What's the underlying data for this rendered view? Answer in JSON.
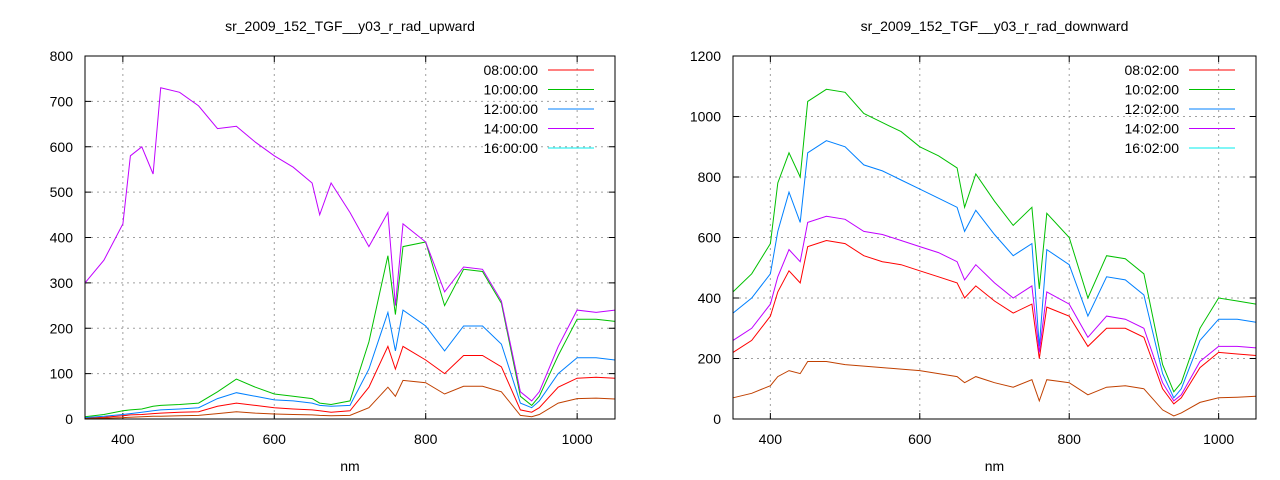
{
  "chart_data": [
    {
      "type": "line",
      "title": "sr_2009_152_TGF__y03_r_rad_upward",
      "xlabel": "nm",
      "ylabel": "",
      "xlim": [
        350,
        1050
      ],
      "ylim": [
        0,
        800
      ],
      "xticks": [
        400,
        600,
        800,
        1000
      ],
      "yticks": [
        0,
        100,
        200,
        300,
        400,
        500,
        600,
        700,
        800
      ],
      "grid": true,
      "legend_position": "top-right",
      "x": [
        350,
        375,
        400,
        410,
        425,
        440,
        450,
        475,
        500,
        525,
        550,
        575,
        600,
        625,
        650,
        660,
        675,
        700,
        725,
        750,
        760,
        770,
        800,
        825,
        850,
        875,
        900,
        925,
        940,
        950,
        975,
        1000,
        1025,
        1050
      ],
      "series": [
        {
          "name": "08:00:00",
          "color": "#ff0000",
          "legend_color": "#ff0000",
          "values": [
            2,
            4,
            7,
            9,
            10,
            12,
            13,
            15,
            16,
            28,
            35,
            30,
            25,
            22,
            20,
            18,
            15,
            18,
            70,
            160,
            110,
            160,
            130,
            100,
            140,
            140,
            115,
            20,
            15,
            25,
            70,
            90,
            92,
            90
          ]
        },
        {
          "name": "10:00:00",
          "color": "#00c000",
          "legend_color": "#00c000",
          "values": [
            5,
            10,
            18,
            20,
            22,
            28,
            30,
            32,
            35,
            60,
            88,
            70,
            55,
            50,
            45,
            35,
            32,
            40,
            170,
            360,
            230,
            380,
            390,
            250,
            330,
            325,
            255,
            50,
            30,
            50,
            140,
            220,
            220,
            215
          ]
        },
        {
          "name": "12:00:00",
          "color": "#0080ff",
          "legend_color": "#0080ff",
          "values": [
            3,
            6,
            10,
            12,
            15,
            18,
            20,
            22,
            25,
            45,
            58,
            50,
            42,
            40,
            35,
            30,
            28,
            30,
            110,
            235,
            150,
            240,
            205,
            150,
            205,
            205,
            165,
            35,
            25,
            40,
            100,
            135,
            135,
            130
          ]
        },
        {
          "name": "14:00:00",
          "color": "#c000ff",
          "legend_color": "#c000ff",
          "values": [
            300,
            350,
            430,
            580,
            600,
            540,
            730,
            720,
            690,
            640,
            645,
            610,
            580,
            555,
            520,
            450,
            520,
            455,
            380,
            455,
            250,
            430,
            390,
            280,
            335,
            330,
            260,
            60,
            40,
            60,
            160,
            240,
            235,
            240
          ]
        },
        {
          "name": "16:00:00",
          "color": "#c04000",
          "legend_color": "#00eeee",
          "values": [
            1,
            2,
            3,
            4,
            5,
            6,
            6,
            7,
            8,
            12,
            16,
            13,
            11,
            10,
            9,
            8,
            7,
            8,
            25,
            70,
            50,
            85,
            80,
            55,
            72,
            72,
            60,
            8,
            5,
            10,
            35,
            45,
            46,
            44
          ]
        }
      ]
    },
    {
      "type": "line",
      "title": "sr_2009_152_TGF__y03_r_rad_downward",
      "xlabel": "nm",
      "ylabel": "",
      "xlim": [
        350,
        1050
      ],
      "ylim": [
        0,
        1200
      ],
      "xticks": [
        400,
        600,
        800,
        1000
      ],
      "yticks": [
        0,
        200,
        400,
        600,
        800,
        1000,
        1200
      ],
      "grid": true,
      "legend_position": "top-right",
      "x": [
        350,
        375,
        400,
        410,
        425,
        440,
        450,
        475,
        500,
        525,
        550,
        575,
        600,
        625,
        650,
        660,
        675,
        700,
        725,
        750,
        760,
        770,
        800,
        825,
        850,
        875,
        900,
        925,
        940,
        950,
        975,
        1000,
        1025,
        1050
      ],
      "series": [
        {
          "name": "08:02:00",
          "color": "#ff0000",
          "legend_color": "#ff0000",
          "values": [
            220,
            260,
            340,
            420,
            490,
            450,
            570,
            590,
            580,
            540,
            520,
            510,
            490,
            470,
            450,
            400,
            440,
            390,
            350,
            380,
            200,
            370,
            340,
            240,
            300,
            300,
            270,
            100,
            50,
            70,
            170,
            220,
            215,
            210
          ]
        },
        {
          "name": "10:02:00",
          "color": "#00c000",
          "legend_color": "#00c000",
          "values": [
            420,
            480,
            580,
            780,
            880,
            800,
            1050,
            1090,
            1080,
            1010,
            980,
            950,
            900,
            870,
            830,
            700,
            810,
            720,
            640,
            700,
            430,
            680,
            600,
            400,
            540,
            530,
            480,
            180,
            90,
            120,
            300,
            400,
            390,
            380
          ]
        },
        {
          "name": "12:02:00",
          "color": "#0080ff",
          "legend_color": "#0080ff",
          "values": [
            350,
            400,
            480,
            620,
            750,
            650,
            880,
            920,
            900,
            840,
            820,
            790,
            760,
            730,
            700,
            620,
            690,
            610,
            540,
            580,
            240,
            560,
            510,
            340,
            470,
            460,
            410,
            150,
            70,
            100,
            260,
            330,
            330,
            320
          ]
        },
        {
          "name": "14:02:00",
          "color": "#c000ff",
          "legend_color": "#c000ff",
          "values": [
            260,
            300,
            380,
            470,
            560,
            520,
            650,
            670,
            660,
            620,
            610,
            590,
            570,
            550,
            520,
            460,
            510,
            450,
            400,
            440,
            220,
            420,
            380,
            270,
            340,
            330,
            300,
            120,
            60,
            80,
            190,
            240,
            240,
            235
          ]
        },
        {
          "name": "16:02:00",
          "color": "#c04000",
          "legend_color": "#00eeee",
          "values": [
            70,
            85,
            110,
            140,
            160,
            150,
            190,
            190,
            180,
            175,
            170,
            165,
            160,
            150,
            140,
            120,
            140,
            120,
            105,
            130,
            60,
            130,
            120,
            80,
            105,
            110,
            100,
            30,
            10,
            20,
            55,
            70,
            72,
            75
          ]
        }
      ]
    }
  ]
}
